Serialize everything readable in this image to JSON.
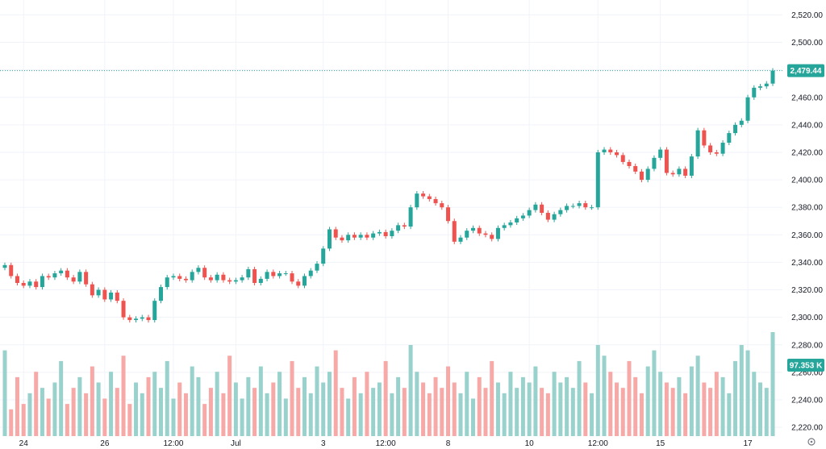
{
  "chart_data": {
    "type": "candlestick",
    "colors": {
      "up": "#26a69a",
      "down": "#ef5350",
      "vol_up": "#99d2cc",
      "vol_down": "#f7a9a7",
      "grid": "#f0f3fa",
      "text": "#131722"
    },
    "y_ticks": [
      "2,520.00",
      "2,500.00",
      "2,480.00",
      "2,460.00",
      "2,440.00",
      "2,420.00",
      "2,400.00",
      "2,380.00",
      "2,360.00",
      "2,340.00",
      "2,320.00",
      "2,300.00",
      "2,280.00",
      "2,260.00",
      "2,240.00",
      "2,220.00"
    ],
    "y_tick_values": [
      2520,
      2500,
      2480,
      2460,
      2440,
      2420,
      2400,
      2380,
      2360,
      2340,
      2320,
      2300,
      2280,
      2260,
      2240,
      2220
    ],
    "ylim": [
      2213.6,
      2530.8
    ],
    "x_ticks": [
      "24",
      "26",
      "12:00",
      "Jul",
      "3",
      "12:00",
      "8",
      "10",
      "12:00",
      "15",
      "17"
    ],
    "x_tick_index": [
      3,
      16,
      27,
      37,
      51,
      61,
      71,
      84,
      95,
      105,
      119
    ],
    "last_price": 2479.44,
    "last_price_label": "2,479.44",
    "last_volume_label": "97.353 K",
    "price_series": [
      2338,
      2330,
      2325,
      2323,
      2326,
      2322,
      2330,
      2329,
      2332,
      2334,
      2329,
      2326,
      2333,
      2324,
      2316,
      2320,
      2313,
      2318,
      2312,
      2300,
      2298,
      2299,
      2300,
      2298,
      2312,
      2322,
      2329,
      2330,
      2328,
      2327,
      2333,
      2336,
      2329,
      2327,
      2331,
      2327,
      2326,
      2327,
      2329,
      2335,
      2325,
      2328,
      2333,
      2330,
      2332,
      2332,
      2326,
      2323,
      2330,
      2334,
      2339,
      2350,
      2364,
      2358,
      2356,
      2360,
      2358,
      2360,
      2358,
      2361,
      2362,
      2359,
      2363,
      2367,
      2366,
      2380,
      2390,
      2388,
      2386,
      2383,
      2380,
      2370,
      2355,
      2358,
      2363,
      2365,
      2361,
      2360,
      2357,
      2365,
      2367,
      2369,
      2372,
      2374,
      2378,
      2382,
      2376,
      2371,
      2375,
      2378,
      2381,
      2381,
      2383,
      2380,
      2380,
      2420,
      2422,
      2420,
      2418,
      2413,
      2410,
      2406,
      2400,
      2408,
      2416,
      2422,
      2405,
      2404,
      2408,
      2403,
      2417,
      2436,
      2425,
      2420,
      2419,
      2427,
      2434,
      2440,
      2443,
      2460,
      2467,
      2468,
      2470,
      2479.44
    ],
    "volume": [
      80,
      25,
      55,
      30,
      40,
      60,
      45,
      35,
      50,
      70,
      30,
      45,
      55,
      40,
      65,
      50,
      35,
      60,
      45,
      75,
      30,
      50,
      40,
      55,
      60,
      45,
      70,
      35,
      50,
      40,
      65,
      55,
      30,
      45,
      60,
      40,
      75,
      50,
      35,
      55,
      45,
      65,
      40,
      50,
      60,
      35,
      70,
      45,
      55,
      40,
      65,
      50,
      60,
      80,
      45,
      35,
      55,
      40,
      60,
      45,
      50,
      70,
      40,
      55,
      45,
      85,
      60,
      50,
      40,
      55,
      45,
      65,
      50,
      40,
      60,
      35,
      55,
      45,
      70,
      50,
      40,
      60,
      45,
      55,
      50,
      65,
      45,
      40,
      60,
      50,
      55,
      45,
      70,
      50,
      40,
      85,
      75,
      60,
      50,
      45,
      70,
      55,
      40,
      65,
      80,
      60,
      50,
      45,
      55,
      40,
      65,
      75,
      50,
      45,
      60,
      55,
      40,
      70,
      85,
      80,
      60,
      50,
      45,
      97
    ]
  }
}
